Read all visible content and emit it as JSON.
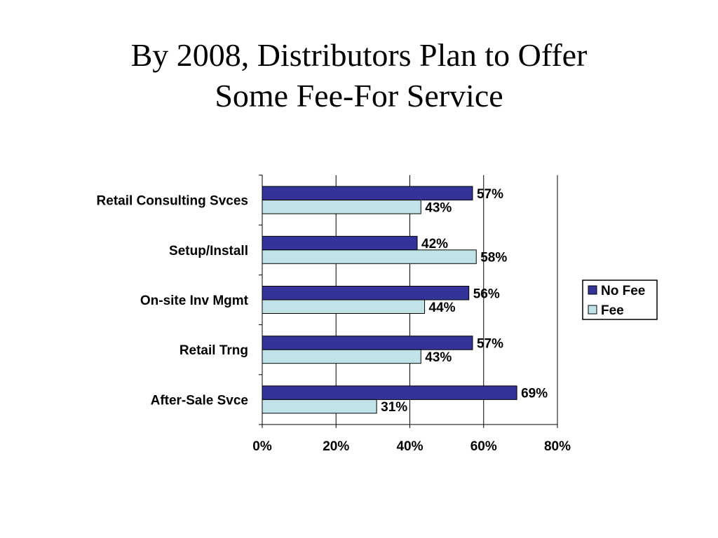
{
  "slide": {
    "title_line1": "By 2008, Distributors Plan to Offer",
    "title_line2": "Some Fee-For Service"
  },
  "chart_data": {
    "type": "bar",
    "orientation": "horizontal",
    "categories": [
      "Retail Consulting Svces",
      "Setup/Install",
      "On-site Inv Mgmt",
      "Retail Trng",
      "After-Sale Svce"
    ],
    "series": [
      {
        "name": "No Fee",
        "color": "#333399",
        "values": [
          57,
          42,
          56,
          57,
          69
        ],
        "labels": [
          "57%",
          "42%",
          "56%",
          "57%",
          "69%"
        ]
      },
      {
        "name": "Fee",
        "color": "#bfe3e6",
        "values": [
          43,
          58,
          44,
          43,
          31
        ],
        "labels": [
          "43%",
          "58%",
          "44%",
          "43%",
          "31%"
        ]
      }
    ],
    "x_ticks": [
      0,
      20,
      40,
      60,
      80
    ],
    "x_tick_labels": [
      "0%",
      "20%",
      "40%",
      "60%",
      "80%"
    ],
    "xlim": [
      0,
      80
    ],
    "grid": true,
    "legend_position": "right"
  }
}
